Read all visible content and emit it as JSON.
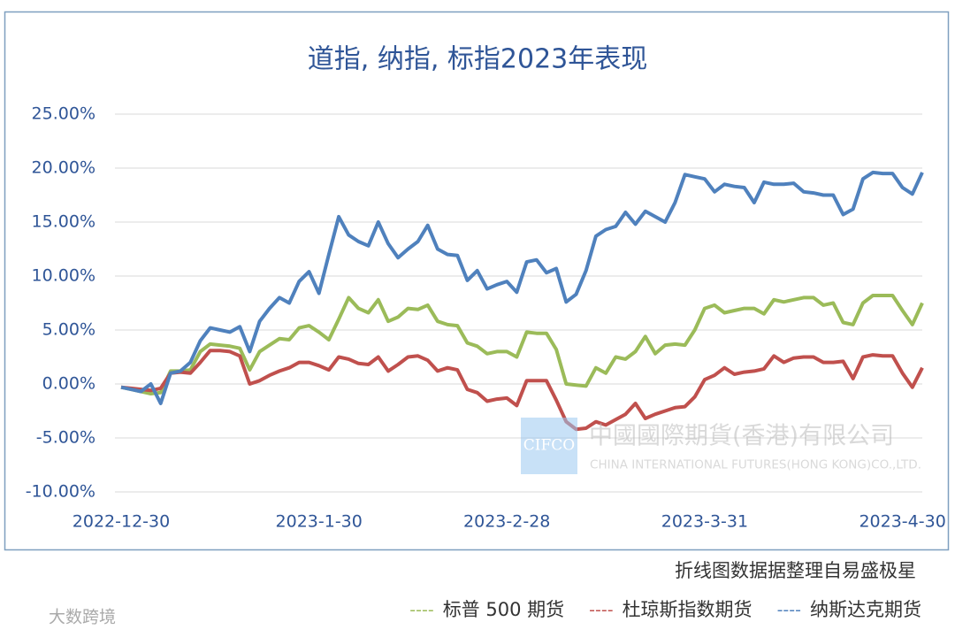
{
  "chart_data": {
    "type": "line",
    "title": "道指, 纳指, 标指2023年表现",
    "categories": [
      "2022-12-30",
      null,
      null,
      null,
      null,
      null,
      null,
      null,
      null,
      null,
      null,
      null,
      null,
      null,
      null,
      null,
      null,
      null,
      null,
      null,
      "2023-1-30",
      null,
      null,
      null,
      null,
      null,
      null,
      null,
      null,
      null,
      null,
      null,
      null,
      null,
      null,
      null,
      null,
      null,
      null,
      "2023-2-28",
      null,
      null,
      null,
      null,
      null,
      null,
      null,
      null,
      null,
      null,
      null,
      null,
      null,
      null,
      null,
      null,
      null,
      null,
      null,
      "2023-3-31",
      null,
      null,
      null,
      null,
      null,
      null,
      null,
      null,
      null,
      null,
      null,
      null,
      null,
      null,
      null,
      null,
      null,
      null,
      null,
      "2023-4-30",
      null,
      null
    ],
    "series": [
      {
        "name": "标普 500 期货",
        "color": "#9bbb59",
        "values": [
          -0.3,
          -0.5,
          -0.7,
          -0.9,
          -0.8,
          1.2,
          1.2,
          1.3,
          3,
          3.7,
          3.6,
          3.5,
          3.3,
          1.3,
          3,
          3.6,
          4.2,
          4.1,
          5.2,
          5.4,
          4.8,
          4.1,
          6,
          8,
          7,
          6.6,
          7.8,
          5.8,
          6.2,
          7,
          6.9,
          7.3,
          5.8,
          5.5,
          5.4,
          3.8,
          3.5,
          2.8,
          3,
          3,
          2.5,
          4.8,
          4.7,
          4.7,
          3.2,
          0,
          -0.1,
          -0.2,
          1.5,
          1,
          2.5,
          2.3,
          3,
          4.4,
          2.8,
          3.6,
          3.7,
          3.6,
          5,
          7,
          7.3,
          6.6,
          6.8,
          7,
          7,
          6.5,
          7.8,
          7.6,
          7.8,
          8,
          8,
          7.3,
          7.5,
          5.7,
          5.5,
          7.5,
          8.2,
          8.2,
          8.2,
          6.8,
          5.5,
          7.5
        ]
      },
      {
        "name": "杜琼斯指数期货",
        "color": "#c0504d",
        "values": [
          -0.3,
          -0.4,
          -0.5,
          -0.6,
          -0.4,
          1,
          1.1,
          1,
          2,
          3.1,
          3.1,
          3,
          2.6,
          0,
          0.3,
          0.8,
          1.2,
          1.5,
          2,
          2,
          1.7,
          1.3,
          2.5,
          2.3,
          1.9,
          1.8,
          2.5,
          1.2,
          1.8,
          2.5,
          2.6,
          2.2,
          1.2,
          1.5,
          1.3,
          -0.5,
          -0.8,
          -1.6,
          -1.4,
          -1.3,
          -2,
          0.3,
          0.3,
          0.3,
          -1.5,
          -3.5,
          -4.2,
          -4.1,
          -3.5,
          -3.8,
          -3.3,
          -2.8,
          -1.8,
          -3.2,
          -2.8,
          -2.5,
          -2.2,
          -2.1,
          -1.2,
          0.4,
          0.8,
          1.5,
          0.9,
          1.1,
          1.2,
          1.4,
          2.6,
          2,
          2.4,
          2.5,
          2.5,
          2,
          2,
          2.1,
          0.5,
          2.5,
          2.7,
          2.6,
          2.6,
          1,
          -0.3,
          1.5
        ]
      },
      {
        "name": "纳斯达克期货",
        "color": "#4f81bd",
        "values": [
          -0.3,
          -0.5,
          -0.7,
          0,
          -1.8,
          1,
          1.2,
          2,
          4,
          5.2,
          5,
          4.8,
          5.3,
          3,
          5.8,
          7,
          8,
          7.5,
          9.5,
          10.4,
          8.4,
          12,
          15.5,
          13.8,
          13.2,
          12.8,
          15,
          13,
          11.7,
          12.5,
          13.2,
          14.7,
          12.5,
          12,
          11.9,
          9.6,
          10.5,
          8.8,
          9.2,
          9.5,
          8.5,
          11.3,
          11.5,
          10.3,
          10.7,
          7.6,
          8.3,
          10.5,
          13.7,
          14.3,
          14.6,
          15.9,
          14.8,
          16,
          15.5,
          15,
          16.8,
          19.4,
          19.2,
          19,
          17.8,
          18.5,
          18.3,
          18.2,
          16.8,
          18.7,
          18.5,
          18.5,
          18.6,
          17.8,
          17.7,
          17.5,
          17.5,
          15.7,
          16.2,
          19,
          19.6,
          19.5,
          19.5,
          18.2,
          17.6,
          19.6
        ]
      }
    ],
    "ylim": [
      -10,
      25
    ],
    "yticks": [
      {
        "value": -10,
        "label": "-10.00%"
      },
      {
        "value": -5,
        "label": "-5.00%"
      },
      {
        "value": 0,
        "label": "0.00%"
      },
      {
        "value": 5,
        "label": "5.00%"
      },
      {
        "value": 10,
        "label": "10.00%"
      },
      {
        "value": 15,
        "label": "15.00%"
      },
      {
        "value": 20,
        "label": "20.00%"
      },
      {
        "value": 25,
        "label": "25.00%"
      }
    ],
    "grid": true,
    "legend_prefix": "----",
    "source_note": "折线图数据据整理自易盛极星",
    "watermarks": [
      "CIFCO",
      "中國國際期貨(香港)有限公司",
      "CHINA INTERNATIONAL FUTURES(HONG KONG)CO.,LTD.",
      "大数跨境"
    ]
  }
}
